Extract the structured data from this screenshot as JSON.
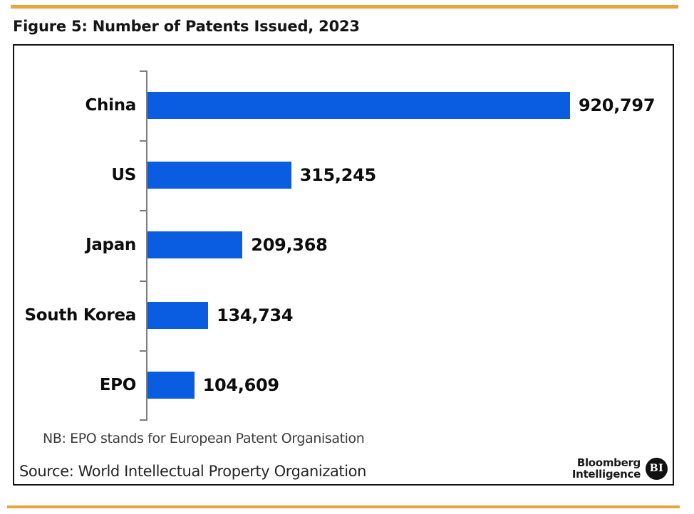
{
  "page": {
    "title": "Figure 5: Number of Patents Issued, 2023",
    "accent_color": "#E9A43D"
  },
  "chart_data": {
    "type": "bar",
    "orientation": "horizontal",
    "title": "Figure 5: Number of Patents Issued, 2023",
    "categories": [
      "China",
      "US",
      "Japan",
      "South Korea",
      "EPO"
    ],
    "values": [
      920797,
      315245,
      209368,
      134734,
      104609
    ],
    "value_labels": [
      "920,797",
      "315,245",
      "209,368",
      "134,734",
      "104,609"
    ],
    "bar_color": "#0A5CE0",
    "axis_color": "#7d7d7d",
    "xlim": [
      0,
      960000
    ],
    "grid": false,
    "legend": "none",
    "value_labels_position": "end-of-bar"
  },
  "footnotes": {
    "nb": "NB: EPO stands for European Patent Organisation",
    "source": "Source: World Intellectual Property Organization"
  },
  "branding": {
    "line1": "Bloomberg",
    "line2": "Intelligence",
    "badge": "BI"
  }
}
